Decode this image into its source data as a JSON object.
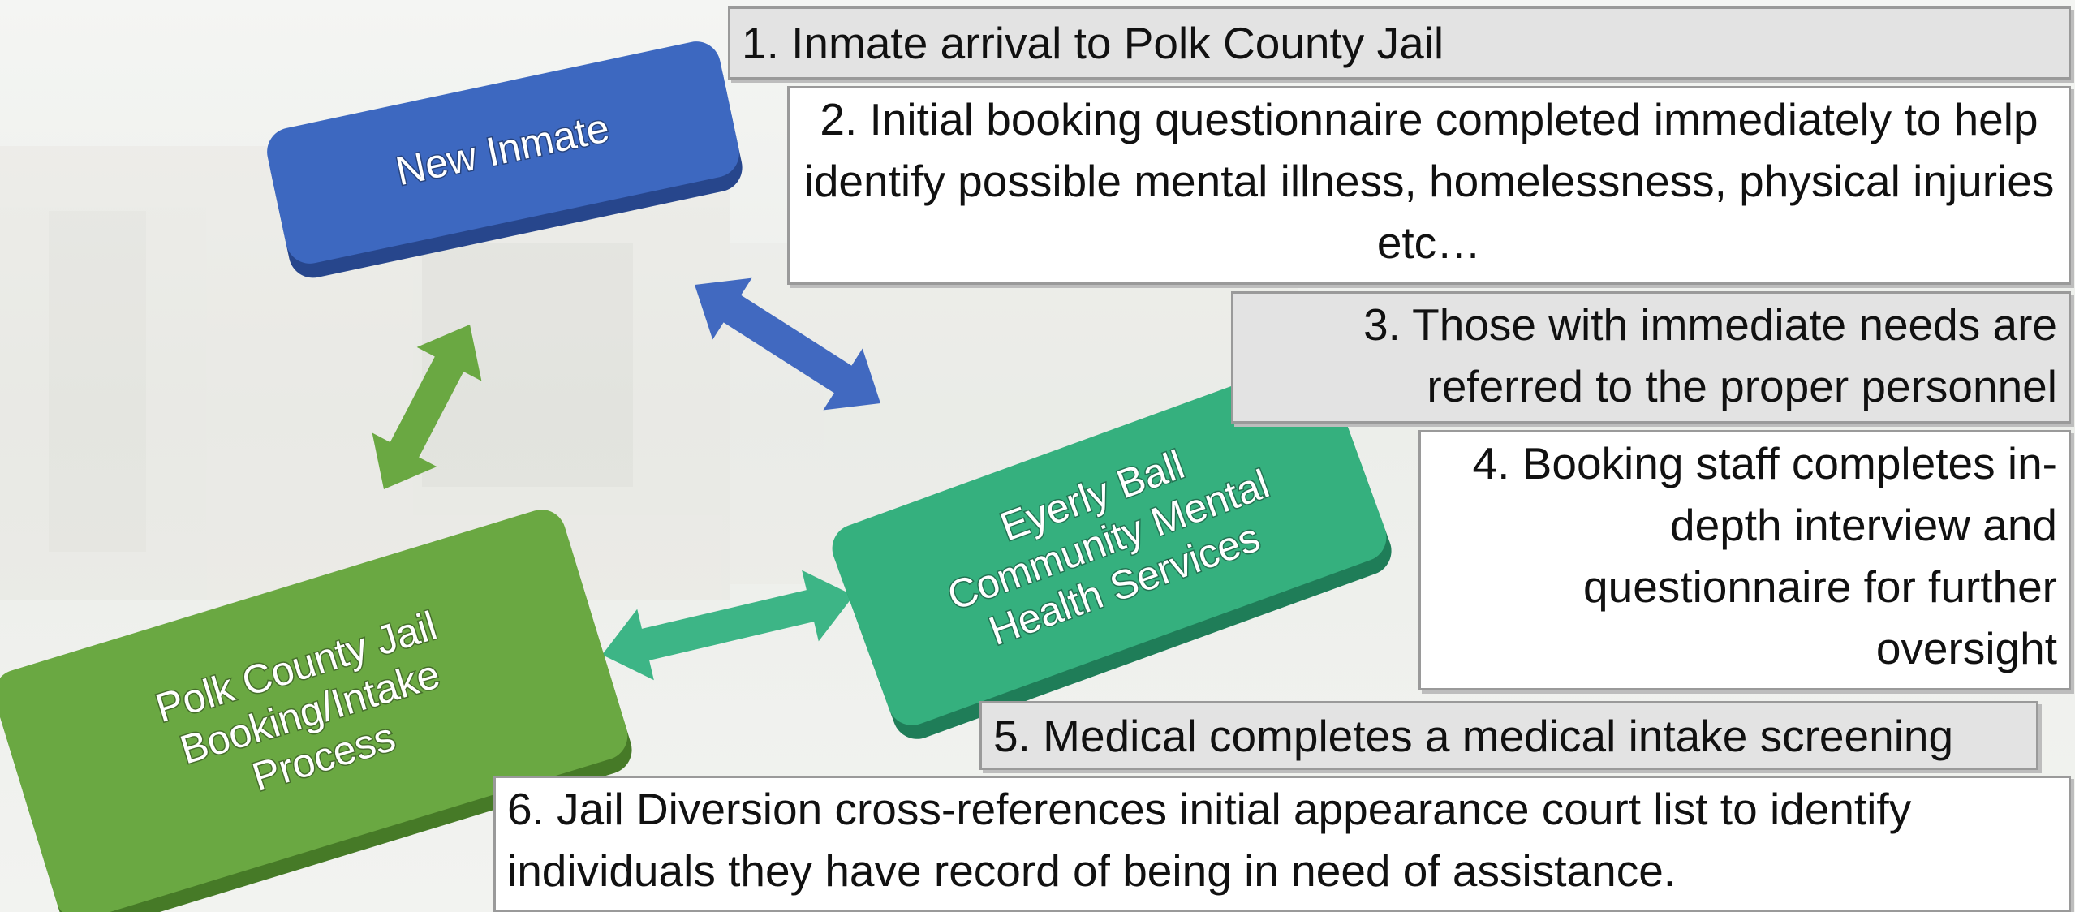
{
  "nodes": [
    {
      "lines": [
        "New Inmate"
      ]
    },
    {
      "lines": [
        "Eyerly Ball",
        "Community Mental",
        "Health Services"
      ]
    },
    {
      "lines": [
        "Polk County Jail",
        "Booking/Intake",
        "Process"
      ]
    }
  ],
  "steps": [
    "1. Inmate arrival to Polk County Jail",
    "2.  Initial booking questionnaire completed immediately to help identify possible mental illness, homelessness, physical injuries etc…",
    "3.  Those with immediate needs are referred to the proper personnel",
    "4.  Booking staff completes in-depth interview and questionnaire for further oversight",
    "5.  Medical completes a medical intake screening",
    "6. Jail Diversion cross-references initial appearance court list to identify individuals they have record of being in need of assistance."
  ]
}
